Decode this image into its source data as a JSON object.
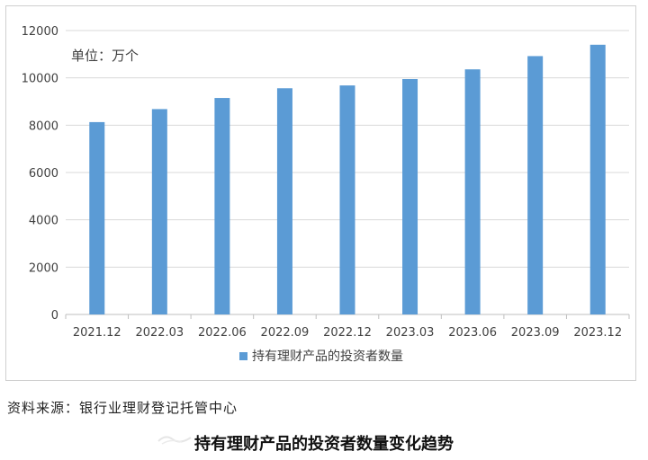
{
  "chart_data": {
    "type": "bar",
    "unit_note": "单位：万个",
    "categories": [
      "2021.12",
      "2022.03",
      "2022.06",
      "2022.09",
      "2022.12",
      "2023.03",
      "2023.06",
      "2023.09",
      "2023.12"
    ],
    "series": [
      {
        "name": "持有理财产品的投资者数量",
        "values": [
          8130,
          8680,
          9150,
          9560,
          9680,
          9950,
          10360,
          10920,
          11400
        ],
        "color": "#5B9BD5"
      }
    ],
    "ylim": [
      0,
      12000
    ],
    "yticks": [
      0,
      2000,
      4000,
      6000,
      8000,
      10000,
      12000
    ],
    "grid": true,
    "legend_position": "bottom"
  },
  "footer": {
    "source": "资料来源：银行业理财登记托管中心",
    "caption": "持有理财产品的投资者数量变化趋势"
  },
  "colors": {
    "bar": "#5B9BD5",
    "grid": "#d9d9d9",
    "axis_text": "#404040"
  }
}
